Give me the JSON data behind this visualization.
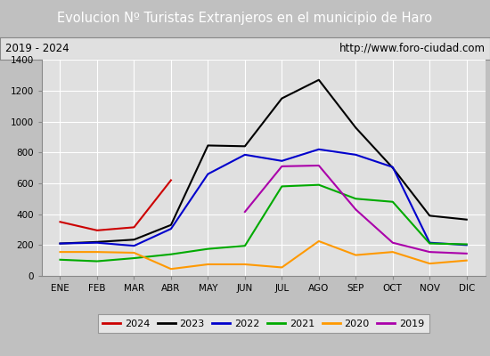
{
  "title": "Evolucion Nº Turistas Extranjeros en el municipio de Haro",
  "subtitle_left": "2019 - 2024",
  "subtitle_right": "http://www.foro-ciudad.com",
  "title_bg_color": "#4472c4",
  "title_text_color": "#ffffff",
  "subtitle_bg_color": "#e0e0e0",
  "plot_bg_color": "#e0e0e0",
  "fig_bg_color": "#c0c0c0",
  "months": [
    "ENE",
    "FEB",
    "MAR",
    "ABR",
    "MAY",
    "JUN",
    "JUL",
    "AGO",
    "SEP",
    "OCT",
    "NOV",
    "DIC"
  ],
  "ylim": [
    0,
    1400
  ],
  "yticks": [
    0,
    200,
    400,
    600,
    800,
    1000,
    1200,
    1400
  ],
  "series": {
    "2024": {
      "color": "#cc0000",
      "data": [
        350,
        295,
        315,
        620,
        null,
        null,
        null,
        null,
        null,
        null,
        null,
        null
      ]
    },
    "2023": {
      "color": "#000000",
      "data": [
        210,
        220,
        235,
        330,
        845,
        840,
        1150,
        1270,
        960,
        700,
        390,
        365
      ]
    },
    "2022": {
      "color": "#0000cc",
      "data": [
        210,
        215,
        195,
        305,
        660,
        785,
        745,
        820,
        785,
        705,
        215,
        200
      ]
    },
    "2021": {
      "color": "#00aa00",
      "data": [
        105,
        95,
        115,
        140,
        175,
        195,
        580,
        590,
        500,
        480,
        210,
        205
      ]
    },
    "2020": {
      "color": "#ff9900",
      "data": [
        155,
        155,
        150,
        45,
        75,
        75,
        55,
        225,
        135,
        155,
        80,
        100
      ]
    },
    "2019": {
      "color": "#aa00aa",
      "data": [
        null,
        null,
        null,
        null,
        null,
        415,
        710,
        715,
        430,
        215,
        155,
        145
      ]
    }
  },
  "legend_order": [
    "2024",
    "2023",
    "2022",
    "2021",
    "2020",
    "2019"
  ]
}
